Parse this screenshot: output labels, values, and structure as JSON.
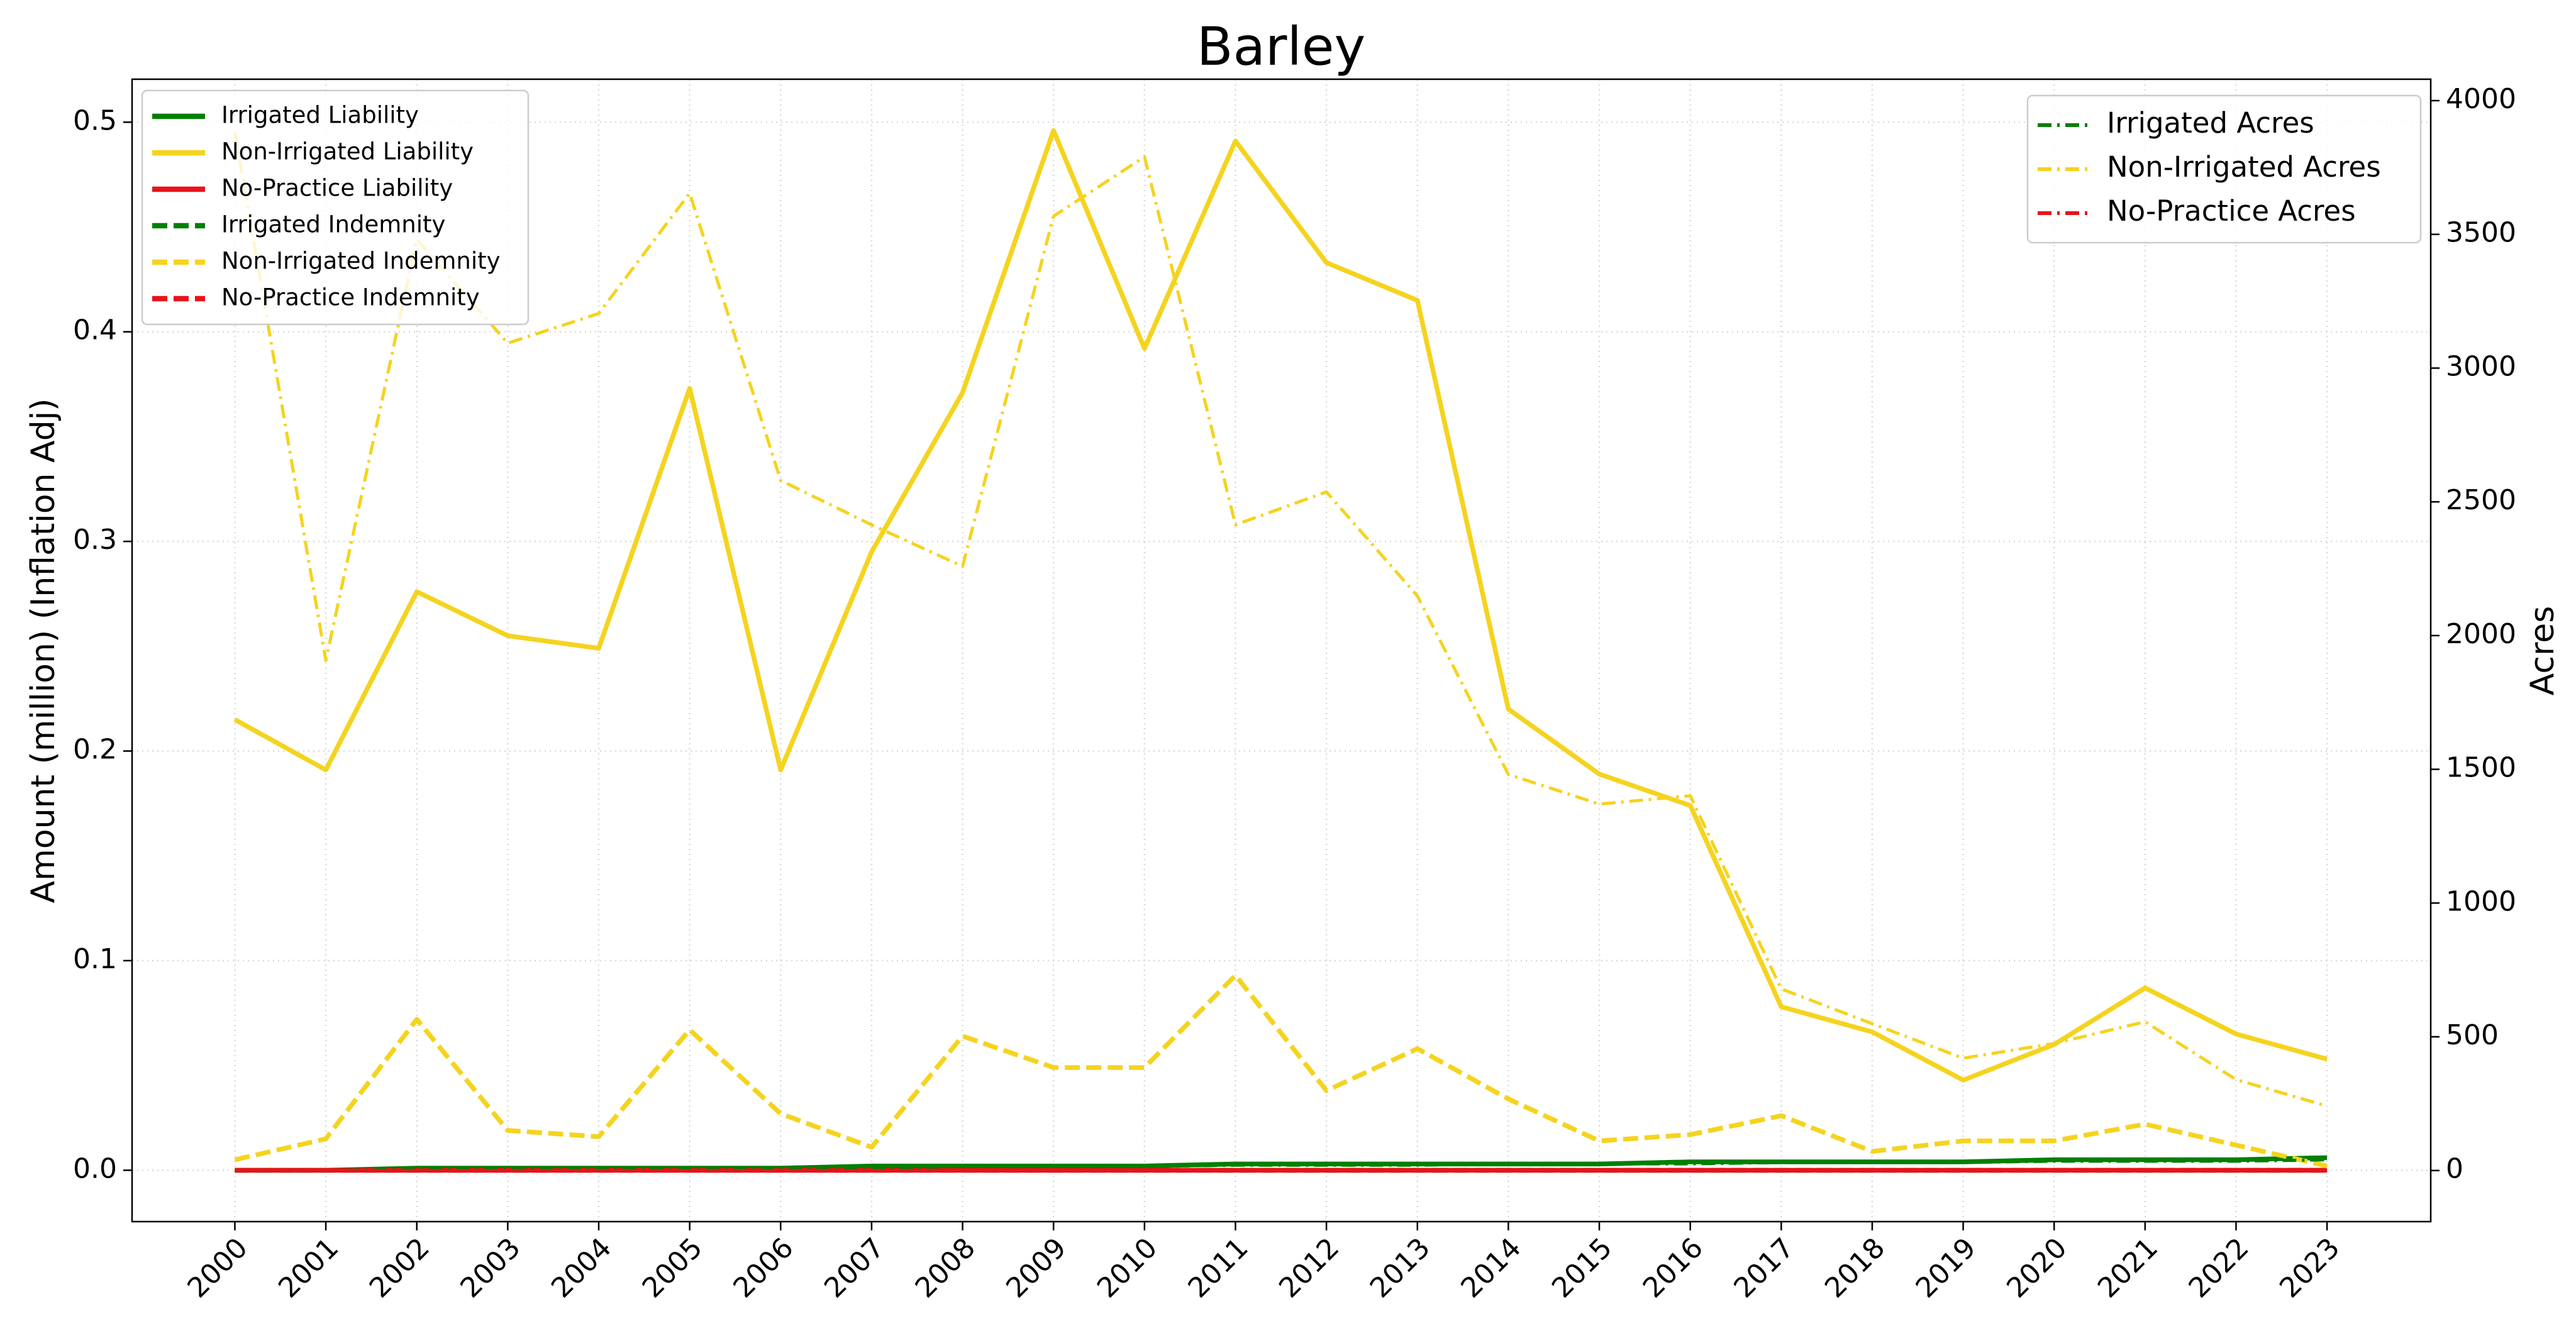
{
  "chart_data": {
    "type": "line",
    "title": "Barley",
    "ylabel": "Amount (million) (Inflation Adj)",
    "y2label": "Acres",
    "x": [
      2000,
      2001,
      2002,
      2003,
      2004,
      2005,
      2006,
      2007,
      2008,
      2009,
      2010,
      2011,
      2012,
      2013,
      2014,
      2015,
      2016,
      2017,
      2018,
      2019,
      2020,
      2021,
      2022,
      2023
    ],
    "xlim": [
      1998.87,
      2024.14
    ],
    "xticks": [
      2000,
      2001,
      2002,
      2003,
      2004,
      2005,
      2006,
      2007,
      2008,
      2009,
      2010,
      2011,
      2012,
      2013,
      2014,
      2015,
      2016,
      2017,
      2018,
      2019,
      2020,
      2021,
      2022,
      2023
    ],
    "ylim": [
      -0.0245,
      0.5205
    ],
    "yticks": [
      {
        "value": 0,
        "label": "0.0"
      },
      0.1,
      0.2,
      0.3,
      0.4,
      0.5
    ],
    "y2lim": [
      -191,
      4080
    ],
    "y2ticks": [
      0,
      500,
      1000,
      1500,
      2000,
      2500,
      3000,
      3500,
      4000
    ],
    "grid": true,
    "legend": "upper left",
    "legend2": "upper right",
    "series": [
      {
        "name": "Irrigated Liability",
        "color": "#008000",
        "linestyle": "solid",
        "values": [
          0.0,
          0.0,
          0.001,
          0.001,
          0.001,
          0.001,
          0.001,
          0.002,
          0.002,
          0.002,
          0.002,
          0.003,
          0.003,
          0.003,
          0.003,
          0.003,
          0.004,
          0.004,
          0.004,
          0.004,
          0.005,
          0.005,
          0.005,
          0.006
        ]
      },
      {
        "name": "Non-Irrigated Liability",
        "color": "#f5d31f",
        "linestyle": "solid",
        "values": [
          0.215,
          0.191,
          0.276,
          0.255,
          0.249,
          0.373,
          0.191,
          0.295,
          0.371,
          0.496,
          0.392,
          0.491,
          0.433,
          0.415,
          0.22,
          0.189,
          0.174,
          0.078,
          0.066,
          0.043,
          0.06,
          0.087,
          0.065,
          0.053
        ]
      },
      {
        "name": "No-Practice Liability",
        "color": "#e8131a",
        "linestyle": "solid",
        "values": [
          0,
          0,
          0,
          0,
          0,
          0,
          0,
          0,
          0,
          0,
          0,
          0,
          0,
          0,
          0,
          0,
          0,
          0,
          0,
          0,
          0,
          0,
          0,
          0
        ]
      },
      {
        "name": "Irrigated Indemnity",
        "color": "#008000",
        "linestyle": "dashed",
        "values": [
          0,
          0,
          0,
          0,
          0,
          0,
          0,
          0,
          0,
          0,
          0,
          0,
          0,
          0,
          0,
          0,
          0,
          0,
          0,
          0,
          0,
          0,
          0,
          0
        ]
      },
      {
        "name": "Non-Irrigated Indemnity",
        "color": "#f5d31f",
        "linestyle": "dashed",
        "values": [
          0.005,
          0.015,
          0.072,
          0.019,
          0.016,
          0.067,
          0.027,
          0.011,
          0.064,
          0.049,
          0.049,
          0.093,
          0.038,
          0.058,
          0.034,
          0.014,
          0.017,
          0.026,
          0.009,
          0.014,
          0.014,
          0.022,
          0.012,
          0.002
        ]
      },
      {
        "name": "No-Practice Indemnity",
        "color": "#e8131a",
        "linestyle": "dashed",
        "values": [
          0,
          0,
          0,
          0,
          0,
          0,
          0,
          0,
          0,
          0,
          0,
          0,
          0,
          0,
          0,
          0,
          0,
          0,
          0,
          0,
          0,
          0,
          0,
          0
        ]
      },
      {
        "name": "Irrigated Acres",
        "color": "#008000",
        "linestyle": "dashdot",
        "axis": "y2",
        "values": [
          0,
          0,
          5,
          5,
          5,
          10,
          10,
          10,
          15,
          15,
          15,
          20,
          20,
          20,
          25,
          25,
          25,
          30,
          30,
          30,
          35,
          35,
          35,
          40
        ]
      },
      {
        "name": "Non-Irrigated Acres",
        "color": "#f5d31f",
        "linestyle": "dashdot",
        "axis": "y2",
        "values": [
          3883,
          1907,
          3481,
          3093,
          3204,
          3654,
          2580,
          2414,
          2259,
          3568,
          3790,
          2414,
          2537,
          2148,
          1481,
          1370,
          1401,
          679,
          549,
          420,
          475,
          556,
          340,
          241
        ]
      },
      {
        "name": "No-Practice Acres",
        "color": "#e8131a",
        "linestyle": "dashdot",
        "axis": "y2",
        "values": [
          0,
          0,
          0,
          0,
          0,
          0,
          0,
          0,
          0,
          0,
          0,
          0,
          0,
          0,
          0,
          0,
          0,
          0,
          0,
          0,
          0,
          0,
          0,
          0
        ]
      }
    ]
  }
}
